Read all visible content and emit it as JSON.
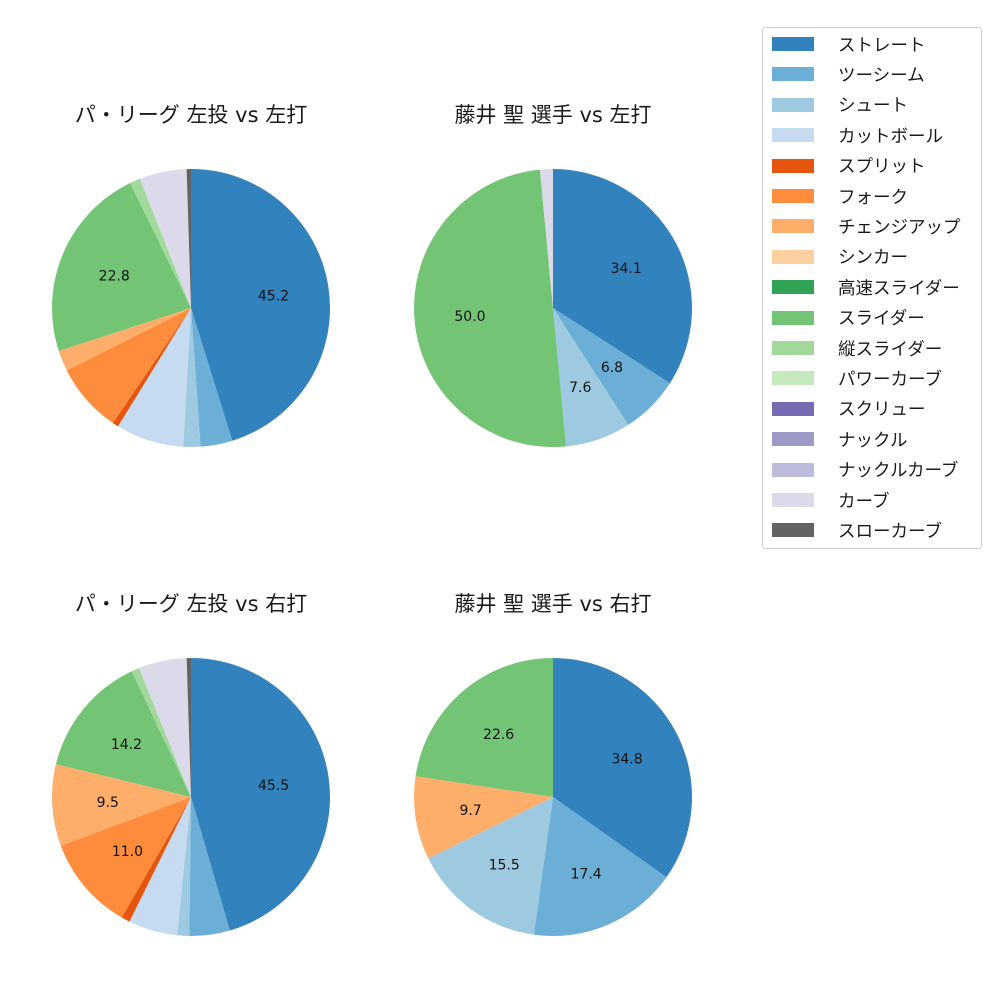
{
  "legend": {
    "items": [
      {
        "label": "ストレート",
        "color": "#3182bd"
      },
      {
        "label": "ツーシーム",
        "color": "#6baed6"
      },
      {
        "label": "シュート",
        "color": "#9ecae1"
      },
      {
        "label": "カットボール",
        "color": "#c6dbef"
      },
      {
        "label": "スプリット",
        "color": "#e6550d"
      },
      {
        "label": "フォーク",
        "color": "#fd8d3c"
      },
      {
        "label": "チェンジアップ",
        "color": "#fdae6b"
      },
      {
        "label": "シンカー",
        "color": "#fdd0a2"
      },
      {
        "label": "高速スライダー",
        "color": "#31a354"
      },
      {
        "label": "スライダー",
        "color": "#74c476"
      },
      {
        "label": "縦スライダー",
        "color": "#a1d99b"
      },
      {
        "label": "パワーカーブ",
        "color": "#c7e9c0"
      },
      {
        "label": "スクリュー",
        "color": "#756bb1"
      },
      {
        "label": "ナックル",
        "color": "#9e9ac8"
      },
      {
        "label": "ナックルカーブ",
        "color": "#bcbddc"
      },
      {
        "label": "カーブ",
        "color": "#dadaeb"
      },
      {
        "label": "スローカーブ",
        "color": "#636363"
      }
    ]
  },
  "chart_data": [
    {
      "type": "pie",
      "title": "パ・リーグ 左投 vs 左打",
      "start_angle": 90,
      "direction": "clockwise",
      "label_threshold": 10,
      "slices": [
        {
          "label": "ストレート",
          "value": 45.2
        },
        {
          "label": "ツーシーム",
          "value": 3.7
        },
        {
          "label": "シュート",
          "value": 2.0
        },
        {
          "label": "カットボール",
          "value": 7.9
        },
        {
          "label": "スプリット",
          "value": 0.7
        },
        {
          "label": "フォーク",
          "value": 8.1
        },
        {
          "label": "チェンジアップ",
          "value": 2.4
        },
        {
          "label": "スライダー",
          "value": 22.8
        },
        {
          "label": "縦スライダー",
          "value": 1.2
        },
        {
          "label": "カーブ",
          "value": 5.5
        },
        {
          "label": "スローカーブ",
          "value": 0.5
        }
      ]
    },
    {
      "type": "pie",
      "title": "藤井 聖 選手 vs 左打",
      "start_angle": 90,
      "direction": "clockwise",
      "label_threshold": 5,
      "slices": [
        {
          "label": "ストレート",
          "value": 34.1
        },
        {
          "label": "ツーシーム",
          "value": 6.8
        },
        {
          "label": "シュート",
          "value": 7.6
        },
        {
          "label": "スライダー",
          "value": 50.0
        },
        {
          "label": "カーブ",
          "value": 1.5
        }
      ]
    },
    {
      "type": "pie",
      "title": "パ・リーグ 左投 vs 右打",
      "start_angle": 90,
      "direction": "clockwise",
      "label_threshold": 9,
      "slices": [
        {
          "label": "ストレート",
          "value": 45.5
        },
        {
          "label": "ツーシーム",
          "value": 4.7
        },
        {
          "label": "シュート",
          "value": 1.4
        },
        {
          "label": "カットボール",
          "value": 5.7
        },
        {
          "label": "スプリット",
          "value": 1.0
        },
        {
          "label": "フォーク",
          "value": 11.0
        },
        {
          "label": "チェンジアップ",
          "value": 9.5
        },
        {
          "label": "スライダー",
          "value": 14.2
        },
        {
          "label": "縦スライダー",
          "value": 0.9
        },
        {
          "label": "カーブ",
          "value": 5.6
        },
        {
          "label": "スローカーブ",
          "value": 0.5
        }
      ]
    },
    {
      "type": "pie",
      "title": "藤井 聖 選手 vs 右打",
      "start_angle": 90,
      "direction": "clockwise",
      "label_threshold": 5,
      "slices": [
        {
          "label": "ストレート",
          "value": 34.8
        },
        {
          "label": "ツーシーム",
          "value": 17.4
        },
        {
          "label": "シュート",
          "value": 15.5
        },
        {
          "label": "チェンジアップ",
          "value": 9.7
        },
        {
          "label": "スライダー",
          "value": 22.6
        }
      ]
    }
  ]
}
